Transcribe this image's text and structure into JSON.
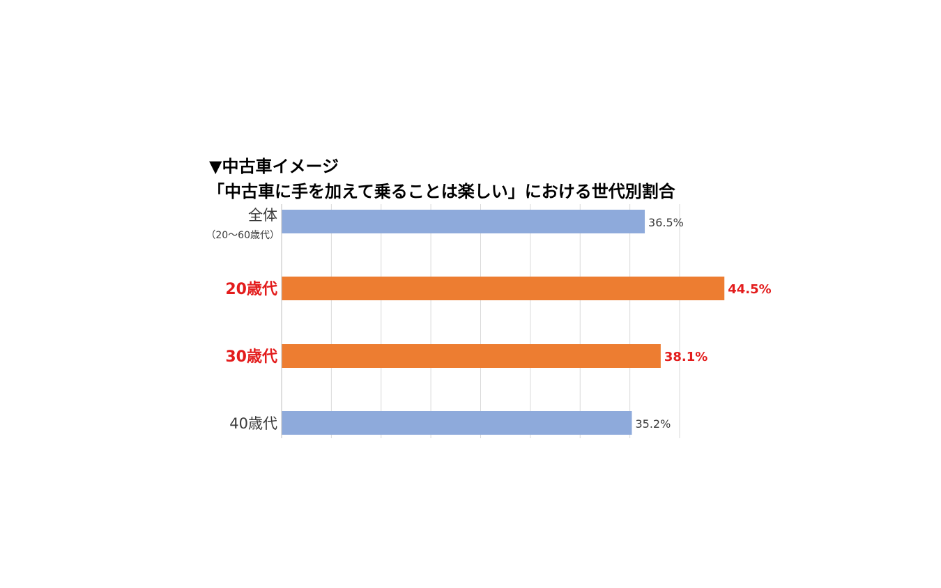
{
  "chart_data": {
    "type": "bar",
    "orientation": "horizontal",
    "title": "▼中古車イメージ",
    "subtitle": "「中古車に手を加えて乗ることは楽しい」における世代別割合",
    "categories": [
      {
        "label": "全体",
        "sublabel": "（20～60歳代）",
        "highlight": false
      },
      {
        "label": "20歳代",
        "sublabel": "",
        "highlight": true
      },
      {
        "label": "30歳代",
        "sublabel": "",
        "highlight": true
      },
      {
        "label": "40歳代",
        "sublabel": "",
        "highlight": false
      }
    ],
    "values": [
      36.5,
      44.5,
      38.1,
      35.2
    ],
    "data_labels": [
      "36.5%",
      "44.5%",
      "38.1%",
      "35.2%"
    ],
    "unit": "%",
    "xlim": [
      0,
      40
    ],
    "grid": true,
    "grid_step": 5,
    "colors": {
      "normal_bar": "#8eaadb",
      "highlight_bar": "#ed7d31",
      "highlight_text": "#e31c1c",
      "normal_text": "#3a3a3a",
      "grid": "#d9d9d9"
    }
  }
}
